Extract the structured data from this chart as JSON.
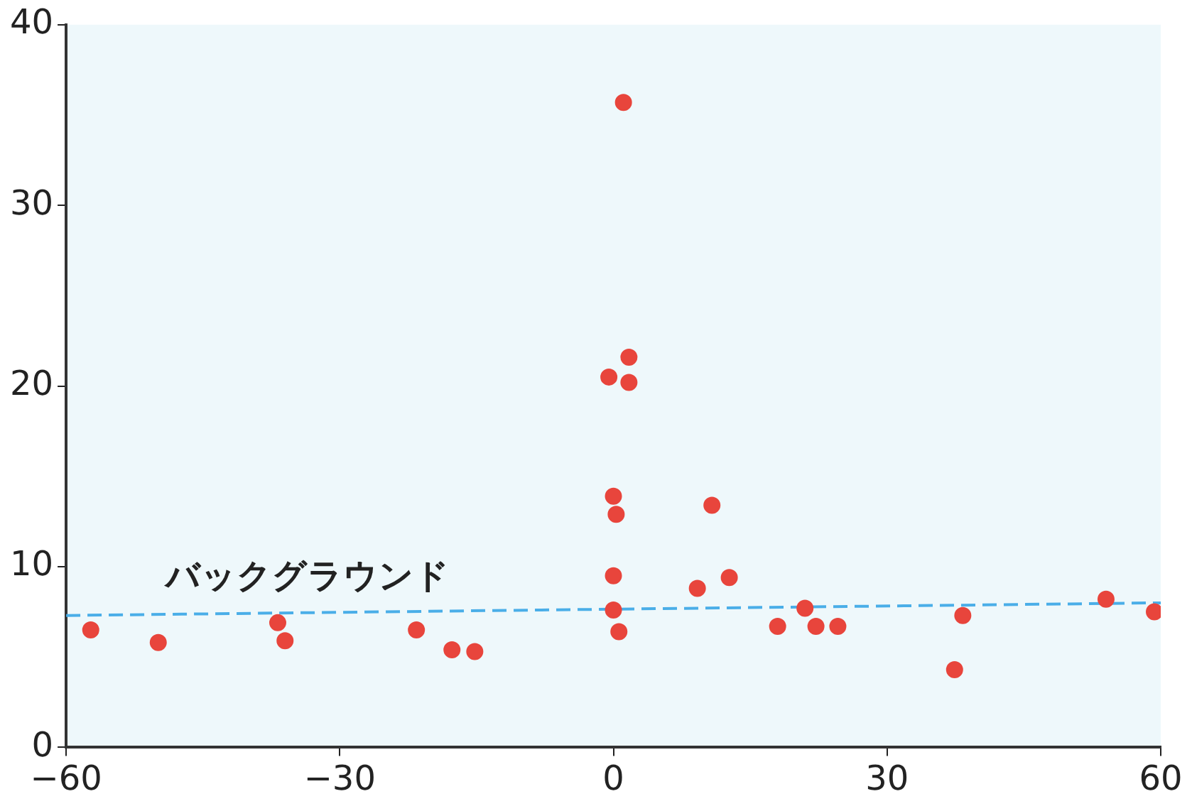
{
  "chart_data": {
    "type": "scatter",
    "xlim": [
      -60,
      60
    ],
    "ylim": [
      0,
      40
    ],
    "xticks": [
      {
        "value": -60,
        "label": "−60"
      },
      {
        "value": -30,
        "label": "−30"
      },
      0,
      30,
      60
    ],
    "yticks": [
      0,
      10,
      20,
      30,
      40
    ],
    "grid": false,
    "legend": false,
    "marker": "circle",
    "series": [
      {
        "color": "#e8453c",
        "x": [
          -57.3,
          -49.9,
          -36.8,
          -36.0,
          -21.6,
          -17.7,
          -15.2,
          1.1,
          -0.5,
          1.7,
          1.7,
          0,
          0.3,
          0,
          0,
          0.6,
          9.2,
          10.8,
          12.7,
          18.0,
          21.0,
          22.2,
          24.6,
          37.4,
          38.3,
          54.0,
          59.3
        ],
        "values": [
          6.5,
          5.8,
          6.9,
          5.9,
          6.5,
          5.4,
          5.3,
          35.7,
          20.5,
          21.6,
          20.2,
          13.9,
          12.9,
          9.5,
          7.6,
          6.4,
          8.8,
          13.4,
          9.4,
          6.7,
          7.7,
          6.7,
          6.7,
          4.3,
          7.3,
          8.2,
          7.5
        ]
      },
      {
        "type": "line",
        "name": "バックグラウンド",
        "color": "#4aaee8",
        "line_style": "dashed",
        "marker": "none",
        "x": [
          -60,
          60
        ],
        "values": [
          7.3,
          8.0
        ]
      }
    ]
  }
}
